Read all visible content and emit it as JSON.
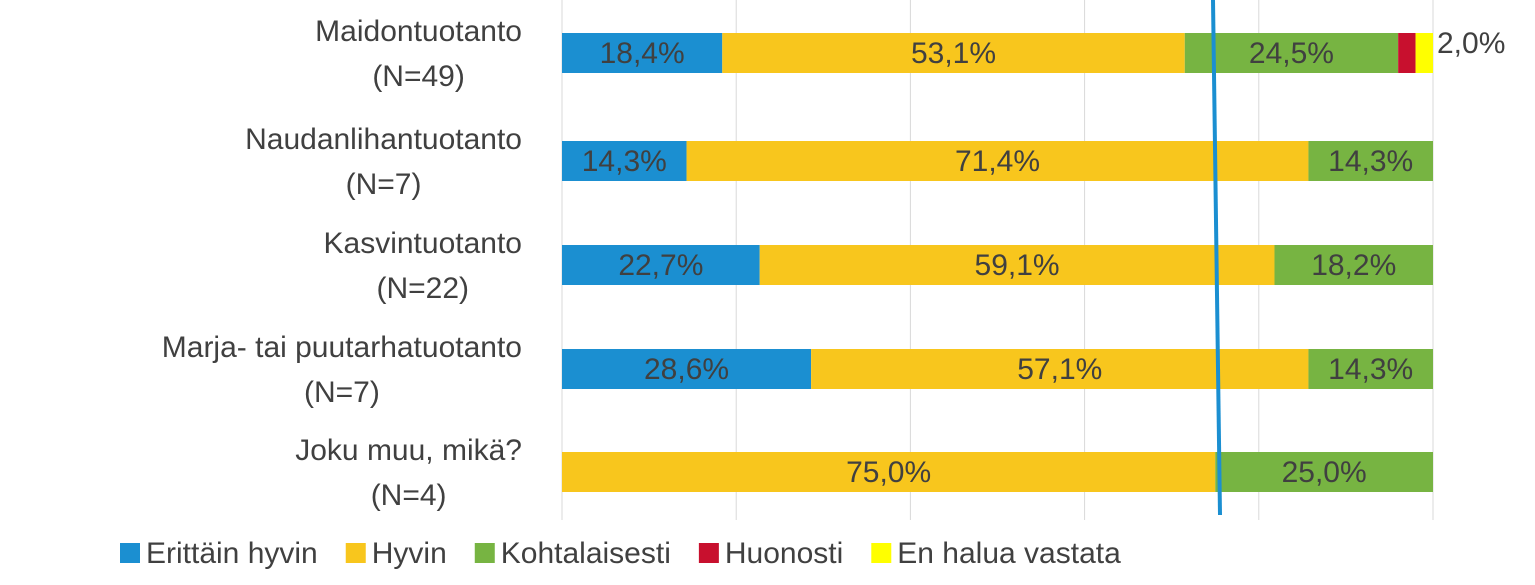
{
  "chart_data": {
    "type": "stacked_bar_horizontal",
    "categories": [
      "Maidontuotanto (N=49)",
      "Naudanlihantuotanto (N=7)",
      "Kasvintuotanto (N=22)",
      "Marja- tai puutarhatuotanto (N=7)",
      "Joku muu, mikä? (N=4)"
    ],
    "series": [
      {
        "name": "Erittäin hyvin",
        "color": "#1b8fd1",
        "values": [
          18.4,
          14.3,
          22.7,
          28.6,
          0
        ],
        "value_labels": [
          "18,4%",
          "14,3%",
          "22,7%",
          "28,6%",
          null
        ]
      },
      {
        "name": "Hyvin",
        "color": "#f8c61d",
        "values": [
          53.1,
          71.4,
          59.1,
          57.1,
          75.0
        ],
        "value_labels": [
          "53,1%",
          "71,4%",
          "59,1%",
          "57,1%",
          "75,0%"
        ]
      },
      {
        "name": "Kohtalaisesti",
        "color": "#77b442",
        "values": [
          24.5,
          14.3,
          18.2,
          14.3,
          25.0
        ],
        "value_labels": [
          "24,5%",
          "14,3%",
          "18,2%",
          "14,3%",
          "25,0%"
        ]
      },
      {
        "name": "Huonosti",
        "color": "#c8102e",
        "values": [
          2.0,
          0,
          0,
          0,
          0
        ]
      },
      {
        "name": "En halua vastata",
        "color": "#ffff00",
        "values": [
          2.0,
          0,
          0,
          0,
          0
        ],
        "value_labels": [
          "2,0%",
          null,
          null,
          null,
          null
        ]
      }
    ],
    "xlim": [
      0,
      100
    ],
    "xticks": [
      0,
      20,
      40,
      60,
      80,
      100
    ],
    "grid": true,
    "legend": "bottom"
  }
}
